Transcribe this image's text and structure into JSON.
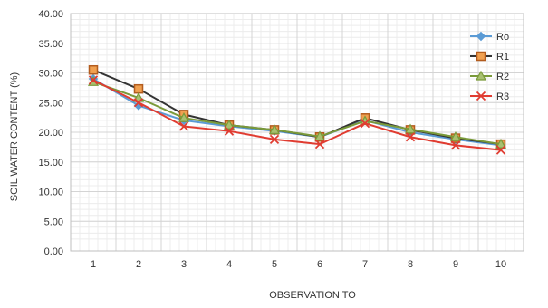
{
  "chart_data": {
    "type": "line",
    "title": "",
    "xlabel": "OBSERVATION TO",
    "ylabel": "SOIL WATER CONTENT (%)",
    "x": [
      1,
      2,
      3,
      4,
      5,
      6,
      7,
      8,
      9,
      10
    ],
    "ylim": [
      0,
      40
    ],
    "yticks": [
      "0.00",
      "5.00",
      "10.00",
      "15.00",
      "20.00",
      "25.00",
      "30.00",
      "35.00",
      "40.00"
    ],
    "grid": true,
    "legend_position": "right",
    "series": [
      {
        "name": "Ro",
        "color": "#5b9bd5",
        "marker": "diamond",
        "values": [
          29.0,
          24.5,
          22.0,
          21.0,
          20.2,
          19.2,
          22.0,
          20.0,
          18.8,
          17.8
        ]
      },
      {
        "name": "R1",
        "color": "#333333",
        "marker": "square",
        "values": [
          30.5,
          27.3,
          23.0,
          21.2,
          20.4,
          19.2,
          22.4,
          20.4,
          19.0,
          18.0
        ]
      },
      {
        "name": "R2",
        "color": "#7a9a3a",
        "marker": "triangle",
        "values": [
          28.5,
          25.8,
          22.4,
          21.2,
          20.4,
          19.3,
          21.9,
          20.5,
          19.2,
          18.0
        ]
      },
      {
        "name": "R3",
        "color": "#e03c31",
        "marker": "x",
        "values": [
          28.8,
          25.0,
          21.0,
          20.2,
          18.8,
          18.0,
          21.5,
          19.2,
          17.8,
          17.0
        ]
      }
    ]
  }
}
